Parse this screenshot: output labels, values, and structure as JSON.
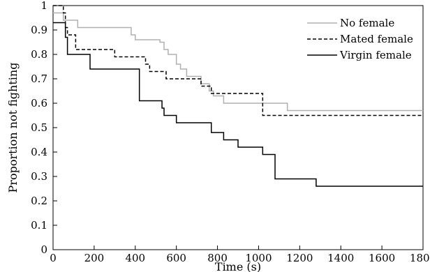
{
  "chart_data": {
    "type": "line",
    "xlabel": "Time (s)",
    "ylabel": "Proportion not fighting",
    "xlim": [
      0,
      1800
    ],
    "ylim": [
      0,
      1.0
    ],
    "x_ticks": [
      "0",
      "200",
      "400",
      "600",
      "800",
      "1000",
      "1200",
      "1400",
      "1600",
      "1800"
    ],
    "y_ticks": [
      "0",
      "0.1",
      "0.2",
      "0.3",
      "0.4",
      "0.5",
      "0.6",
      "0.7",
      "0.8",
      "0.9",
      "1"
    ],
    "grid": false,
    "legend_position": "top-right",
    "series": [
      {
        "name": "No female",
        "color": "#b0b0b0",
        "dash": "solid",
        "steps": [
          [
            0,
            0.97
          ],
          [
            50,
            0.94
          ],
          [
            120,
            0.91
          ],
          [
            380,
            0.88
          ],
          [
            400,
            0.86
          ],
          [
            520,
            0.85
          ],
          [
            540,
            0.82
          ],
          [
            560,
            0.8
          ],
          [
            600,
            0.76
          ],
          [
            620,
            0.74
          ],
          [
            650,
            0.71
          ],
          [
            720,
            0.68
          ],
          [
            760,
            0.65
          ],
          [
            780,
            0.63
          ],
          [
            830,
            0.6
          ],
          [
            1140,
            0.57
          ],
          [
            1800,
            0.57
          ]
        ]
      },
      {
        "name": "Mated female",
        "color": "#000000",
        "dash": "dashed",
        "steps": [
          [
            0,
            1.0
          ],
          [
            50,
            0.97
          ],
          [
            60,
            0.91
          ],
          [
            70,
            0.88
          ],
          [
            110,
            0.82
          ],
          [
            300,
            0.79
          ],
          [
            450,
            0.76
          ],
          [
            470,
            0.73
          ],
          [
            540,
            0.73
          ],
          [
            550,
            0.7
          ],
          [
            720,
            0.67
          ],
          [
            770,
            0.64
          ],
          [
            1020,
            0.55
          ],
          [
            1800,
            0.55
          ]
        ]
      },
      {
        "name": "Virgin female",
        "color": "#000000",
        "dash": "solid",
        "steps": [
          [
            0,
            0.93
          ],
          [
            50,
            0.93
          ],
          [
            60,
            0.87
          ],
          [
            70,
            0.8
          ],
          [
            180,
            0.74
          ],
          [
            420,
            0.61
          ],
          [
            530,
            0.58
          ],
          [
            540,
            0.55
          ],
          [
            600,
            0.52
          ],
          [
            770,
            0.48
          ],
          [
            830,
            0.45
          ],
          [
            900,
            0.42
          ],
          [
            1020,
            0.39
          ],
          [
            1080,
            0.29
          ],
          [
            1280,
            0.26
          ],
          [
            1800,
            0.26
          ]
        ]
      }
    ]
  }
}
